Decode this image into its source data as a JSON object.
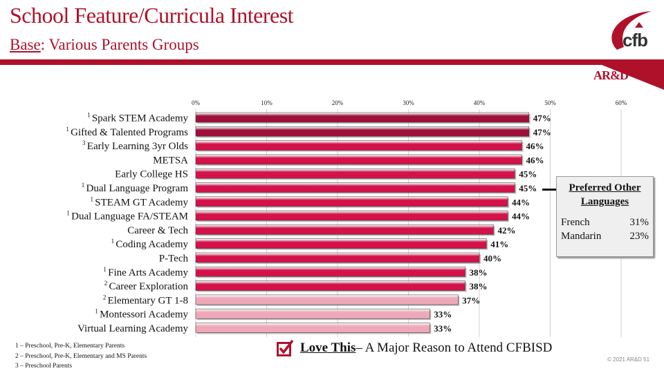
{
  "header": {
    "title": "School Feature/Curricula Interest",
    "subtitle_label": "Base",
    "subtitle_rest": ": Various Parents Groups",
    "logo_text": "cfb",
    "brand_mark": "AR&D",
    "brand_color": "#b0112a"
  },
  "chart_data": {
    "type": "bar",
    "orientation": "horizontal",
    "xlim": [
      0,
      60
    ],
    "xticks": [
      "0%",
      "10%",
      "20%",
      "30%",
      "40%",
      "50%",
      "60%"
    ],
    "grid": true,
    "categories": [
      {
        "label": "Spark STEM Academy",
        "note": "1",
        "value": 47,
        "value_label": "47%",
        "color": "#9e0f3a"
      },
      {
        "label": "Gifted & Talented Programs",
        "note": "1",
        "value": 47,
        "value_label": "47%",
        "color": "#9e0f3a"
      },
      {
        "label": "Early Learning 3yr Olds",
        "note": "3",
        "value": 46,
        "value_label": "46%",
        "color": "#d4124a"
      },
      {
        "label": "METSA",
        "note": "",
        "value": 46,
        "value_label": "46%",
        "color": "#d4124a"
      },
      {
        "label": "Early College HS",
        "note": "",
        "value": 45,
        "value_label": "45%",
        "color": "#d4124a"
      },
      {
        "label": "Dual Language Program",
        "note": "1",
        "value": 45,
        "value_label": "45%",
        "color": "#d4124a"
      },
      {
        "label": "STEAM GT Academy",
        "note": "1",
        "value": 44,
        "value_label": "44%",
        "color": "#d4124a"
      },
      {
        "label": "Dual Language FA/STEAM",
        "note": "1",
        "value": 44,
        "value_label": "44%",
        "color": "#d4124a"
      },
      {
        "label": "Career & Tech",
        "note": "",
        "value": 42,
        "value_label": "42%",
        "color": "#d4124a"
      },
      {
        "label": "Coding Academy",
        "note": "1",
        "value": 41,
        "value_label": "41%",
        "color": "#d4124a"
      },
      {
        "label": "P-Tech",
        "note": "",
        "value": 40,
        "value_label": "40%",
        "color": "#d4124a"
      },
      {
        "label": "Fine Arts Academy",
        "note": "1",
        "value": 38,
        "value_label": "38%",
        "color": "#d4124a"
      },
      {
        "label": "Career Exploration",
        "note": "2",
        "value": 38,
        "value_label": "38%",
        "color": "#d4124a"
      },
      {
        "label": "Elementary GT 1-8",
        "note": "2",
        "value": 37,
        "value_label": "37%",
        "color": "#f0a8b8"
      },
      {
        "label": "Montessori Academy",
        "note": "1",
        "value": 33,
        "value_label": "33%",
        "color": "#f0a8b8"
      },
      {
        "label": "Virtual Learning Academy",
        "note": "",
        "value": 33,
        "value_label": "33%",
        "color": "#f0a8b8"
      }
    ]
  },
  "languages_box": {
    "title_line1": "Preferred Other",
    "title_line2": "Languages",
    "rows": [
      {
        "name": "French",
        "value": "31%"
      },
      {
        "name": "Mandarin",
        "value": "23%"
      }
    ]
  },
  "footnotes": [
    "1 – Preschool, Pre-K, Elementary Parents",
    "2 – Preschool, Pre-K, Elementary and MS Parents",
    "3 – Preschool Parents"
  ],
  "legend": {
    "bold": "Love This",
    "rest": " – A Major Reason to Attend CFBISD"
  },
  "copyright": "© 2021 AR&D   51"
}
